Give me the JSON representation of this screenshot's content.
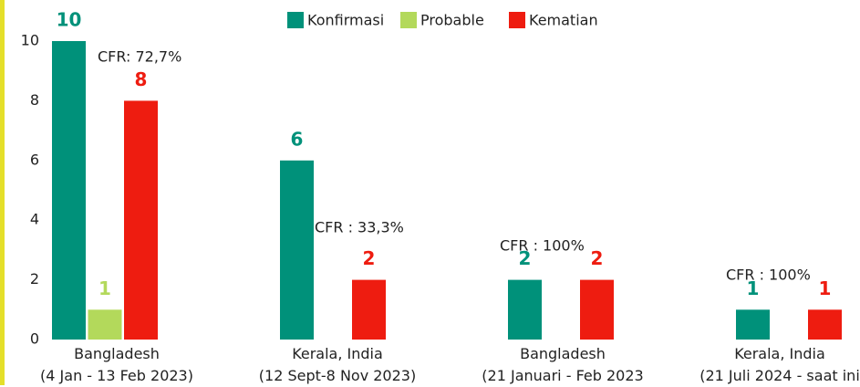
{
  "chart_data": {
    "type": "bar",
    "categories": [
      "Bangladesh\n(4 Jan - 13 Feb 2023)",
      "Kerala, India\n(12 Sept-8 Nov 2023)",
      "Bangladesh\n(21 Januari - Feb 2023",
      "Kerala, India\n(21 Juli 2024 - saat ini"
    ],
    "series": [
      {
        "name": "Konfirmasi",
        "color": "#00917a",
        "values": [
          10,
          6,
          2,
          1
        ]
      },
      {
        "name": "Probable",
        "color": "#b3d95b",
        "values": [
          1,
          null,
          null,
          null
        ]
      },
      {
        "name": "Kematian",
        "color": "#ee1c10",
        "values": [
          8,
          2,
          2,
          1
        ]
      }
    ],
    "annotations": [
      "CFR: 72,7%",
      "CFR : 33,3%",
      "CFR : 100%",
      "CFR : 100%"
    ],
    "ylim": [
      0,
      10
    ],
    "yticks": [
      0,
      2,
      4,
      6,
      8,
      10
    ],
    "grid": false,
    "legend": "top"
  }
}
